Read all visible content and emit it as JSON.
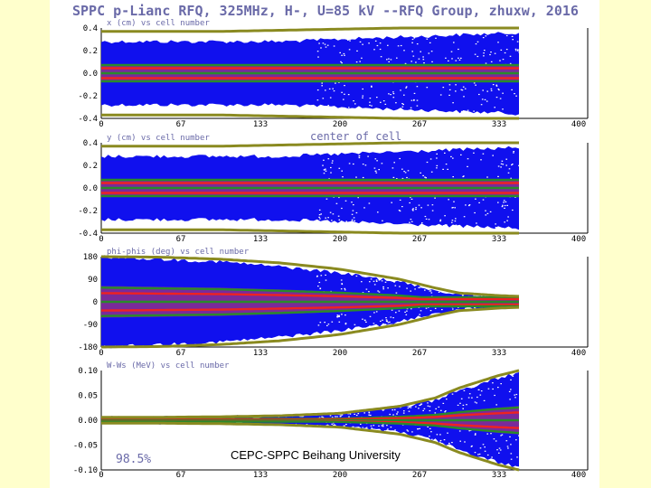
{
  "title": "SPPC p-Lianc RFQ, 325MHz, H-, U=85 kV  --RFQ Group, zhuxw, 2016",
  "footer": "CEPC-SPPC Beihang University",
  "transmission": "98.5%",
  "center_label": "center of cell",
  "chart_data": [
    {
      "type": "scatter",
      "ylabel": "x (cm) vs cell number",
      "x_ticks": [
        "0",
        "67",
        "133",
        "200",
        "267",
        "333",
        "400"
      ],
      "y_ticks": [
        "0.4",
        "0.2",
        "0.0",
        "-0.2",
        "-0.4"
      ],
      "xlim": [
        0,
        400
      ],
      "ylim": [
        -0.4,
        0.4
      ],
      "envelope": {
        "x": [
          0,
          50,
          100,
          150,
          200,
          250,
          280,
          300,
          333,
          350
        ],
        "half_width": [
          0.28,
          0.28,
          0.28,
          0.28,
          0.3,
          0.32,
          0.33,
          0.34,
          0.35,
          0.36
        ]
      },
      "core_half_width": 0.08,
      "aperture": [
        0.37,
        0.37,
        0.37,
        0.38,
        0.39,
        0.4,
        0.4,
        0.4,
        0.4,
        0.4
      ]
    },
    {
      "type": "scatter",
      "ylabel": "y (cm) vs cell number",
      "x_ticks": [
        "0",
        "67",
        "133",
        "200",
        "267",
        "333",
        "400"
      ],
      "y_ticks": [
        "0.4",
        "0.2",
        "0.0",
        "-0.2",
        "-0.4"
      ],
      "xlim": [
        0,
        400
      ],
      "ylim": [
        -0.4,
        0.4
      ],
      "envelope": {
        "x": [
          0,
          50,
          100,
          150,
          200,
          250,
          280,
          300,
          333,
          350
        ],
        "half_width": [
          0.28,
          0.28,
          0.28,
          0.28,
          0.3,
          0.32,
          0.33,
          0.34,
          0.35,
          0.36
        ]
      },
      "core_half_width": 0.08,
      "aperture": [
        0.37,
        0.37,
        0.37,
        0.38,
        0.39,
        0.4,
        0.4,
        0.4,
        0.4,
        0.4
      ]
    },
    {
      "type": "scatter",
      "ylabel": "phi-phis (deg) vs cell number",
      "x_ticks": [
        "0",
        "67",
        "133",
        "200",
        "267",
        "333",
        "400"
      ],
      "y_ticks": [
        "180",
        "90",
        "0",
        "-90",
        "-180"
      ],
      "xlim": [
        0,
        400
      ],
      "ylim": [
        -180,
        180
      ],
      "envelope": {
        "x": [
          0,
          50,
          100,
          150,
          200,
          250,
          280,
          300,
          333,
          350
        ],
        "half_width": [
          180,
          170,
          160,
          140,
          115,
          80,
          45,
          30,
          22,
          20
        ]
      },
      "core_half_width": 20,
      "aperture": [
        180,
        178,
        170,
        155,
        130,
        90,
        55,
        35,
        25,
        22
      ]
    },
    {
      "type": "scatter",
      "ylabel": "W-Ws (MeV) vs cell number",
      "x_ticks": [
        "0",
        "67",
        "133",
        "200",
        "267",
        "333",
        "400"
      ],
      "y_ticks": [
        "0.10",
        "0.05",
        "0.00",
        "-0.05",
        "-0.10"
      ],
      "xlim": [
        0,
        400
      ],
      "ylim": [
        -0.1,
        0.1
      ],
      "envelope": {
        "x": [
          0,
          50,
          100,
          150,
          200,
          250,
          280,
          300,
          333,
          350
        ],
        "half_width": [
          0.005,
          0.005,
          0.006,
          0.008,
          0.012,
          0.025,
          0.04,
          0.06,
          0.085,
          0.095
        ]
      },
      "core_half_width": 0.003,
      "aperture": [
        0.006,
        0.006,
        0.007,
        0.009,
        0.014,
        0.028,
        0.045,
        0.065,
        0.09,
        0.1
      ]
    }
  ]
}
